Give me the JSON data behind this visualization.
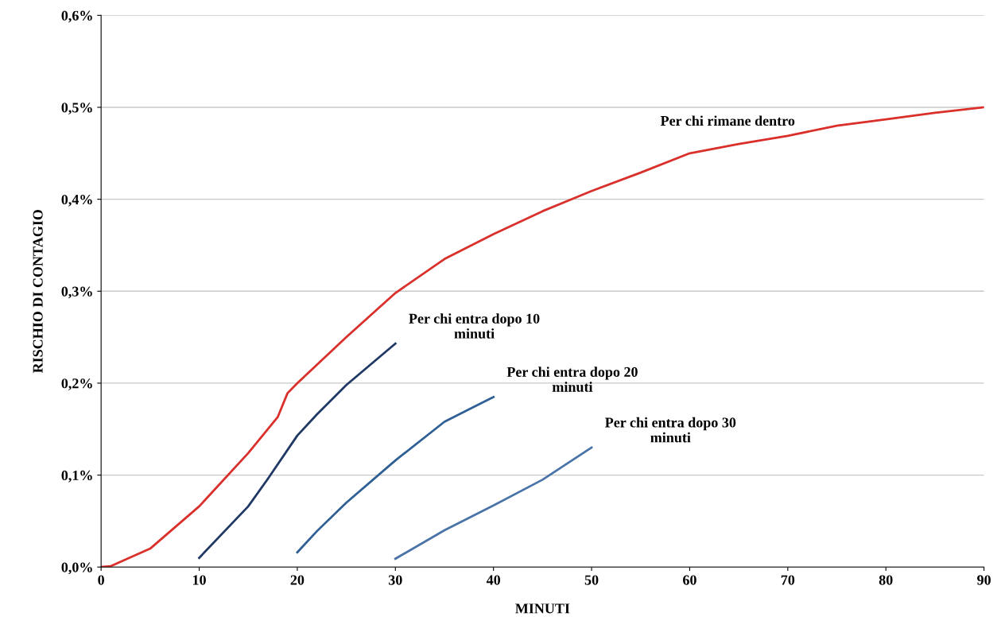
{
  "chart_data": {
    "type": "line",
    "xlabel": "MINUTI",
    "ylabel": "RISCHIO DI CONTAGIO",
    "xlim": [
      0,
      90
    ],
    "xticks": [
      0,
      10,
      20,
      30,
      40,
      50,
      60,
      70,
      80,
      90
    ],
    "ylim": [
      0,
      0.6
    ],
    "yticks": [
      {
        "value": 0,
        "label": "0,0%"
      },
      {
        "value": 0.1,
        "label": "0,1%"
      },
      {
        "value": 0.2,
        "label": "0,2%"
      },
      {
        "value": 0.3,
        "label": "0,3%"
      },
      {
        "value": 0.4,
        "label": "0,4%"
      },
      {
        "value": 0.5,
        "label": "0,5%"
      },
      {
        "value": 0.6,
        "label": "0,6%"
      }
    ],
    "grid": "y",
    "legend": false,
    "marker": "none",
    "line_style": "solid",
    "series": [
      {
        "name": "Per chi rimane dentro",
        "color": "#d9302c",
        "x": [
          0,
          1,
          5,
          10,
          15,
          18,
          19,
          20,
          25,
          30,
          35,
          40,
          45,
          50,
          55,
          60,
          65,
          70,
          75,
          80,
          85,
          90
        ],
        "values": [
          0,
          0.001,
          0.02,
          0.066,
          0.124,
          0.163,
          0.189,
          0.2,
          0.25,
          0.298,
          0.335,
          0.362,
          0.387,
          0.409,
          0.429,
          0.45,
          0.46,
          0.469,
          0.48,
          0.487,
          0.494,
          0.5
        ]
      },
      {
        "name": "Per chi entra dopo 10\nminuti",
        "color": "#1f3864",
        "x": [
          10,
          15,
          17,
          20,
          22,
          25,
          30
        ],
        "values": [
          0.01,
          0.066,
          0.096,
          0.143,
          0.166,
          0.198,
          0.243
        ]
      },
      {
        "name": "Per chi entra dopo 20\nminuti",
        "color": "#2e5f95",
        "x": [
          20,
          22,
          25,
          30,
          35,
          40
        ],
        "values": [
          0.016,
          0.039,
          0.07,
          0.116,
          0.158,
          0.185
        ]
      },
      {
        "name": "Per chi entra dopo 30\nminuti",
        "color": "#4a74a8",
        "x": [
          30,
          35,
          40,
          45,
          50
        ],
        "values": [
          0.009,
          0.04,
          0.067,
          0.095,
          0.13
        ]
      }
    ]
  }
}
